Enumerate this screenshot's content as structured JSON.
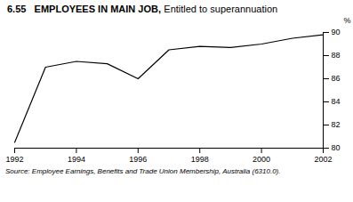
{
  "chart_data": {
    "type": "line",
    "title": "6.55   EMPLOYEES IN MAIN JOB,",
    "subtitle": "Entitled to superannuation",
    "y_label": "%",
    "source": "Source:  Employee Earnings, Benefits and Trade Union Membership, Australia (6310.0).",
    "x": [
      1992,
      1993,
      1994,
      1995,
      1996,
      1997,
      1998,
      1999,
      2000,
      2001,
      2002
    ],
    "values": [
      80.5,
      87.0,
      87.5,
      87.3,
      86.0,
      88.5,
      88.8,
      88.7,
      89.0,
      89.5,
      89.8
    ],
    "color": "#000000",
    "xlim": [
      1992,
      2002
    ],
    "xticks": [
      1992,
      1994,
      1996,
      1998,
      2000,
      2002
    ],
    "ylim": [
      80,
      90
    ],
    "yticks": [
      80,
      82,
      84,
      86,
      88,
      90
    ]
  }
}
